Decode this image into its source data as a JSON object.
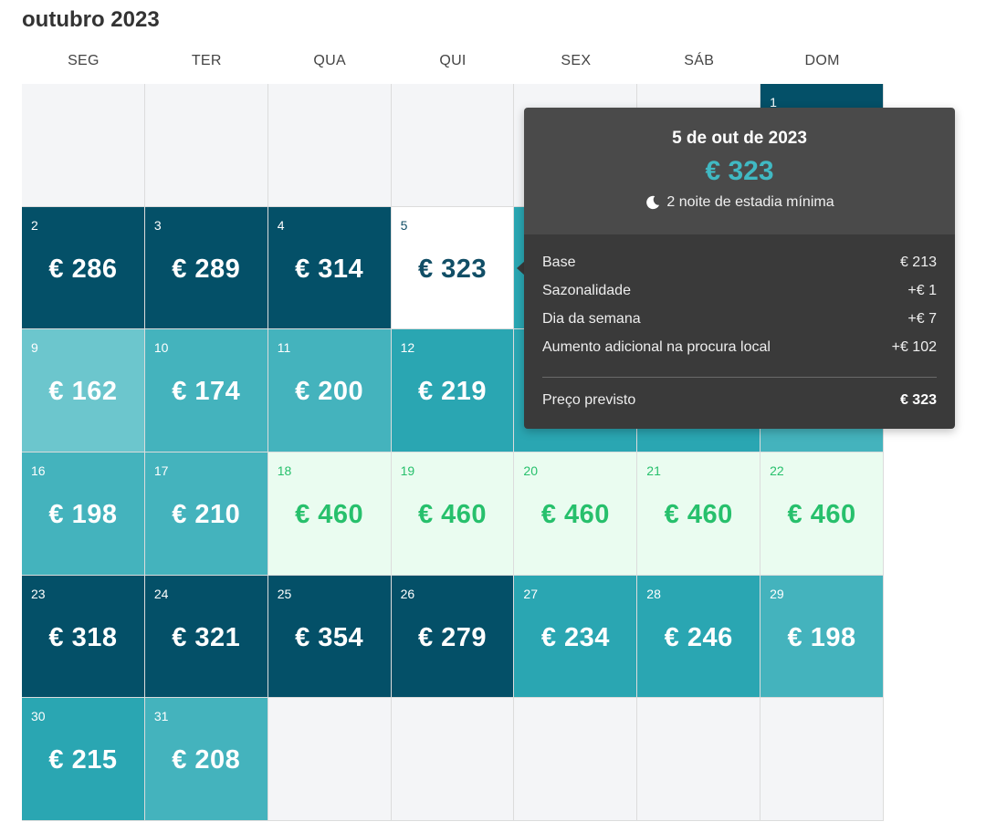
{
  "calendar": {
    "month_title": "outubro 2023",
    "weekdays": [
      "SEG",
      "TER",
      "QUA",
      "QUI",
      "SEX",
      "SÁB",
      "DOM"
    ],
    "days": [
      {
        "day": "1",
        "price": "",
        "col": 6,
        "row": 0,
        "color": "dark"
      },
      {
        "day": "2",
        "price": "€ 286",
        "col": 0,
        "row": 1,
        "color": "dark"
      },
      {
        "day": "3",
        "price": "€ 289",
        "col": 1,
        "row": 1,
        "color": "dark"
      },
      {
        "day": "4",
        "price": "€ 314",
        "col": 2,
        "row": 1,
        "color": "dark"
      },
      {
        "day": "5",
        "price": "€ 323",
        "col": 3,
        "row": 1,
        "color": "white"
      },
      {
        "day": "",
        "price": "",
        "col": 4,
        "row": 1,
        "color": "mid"
      },
      {
        "day": "9",
        "price": "€ 162",
        "col": 0,
        "row": 2,
        "color": "light"
      },
      {
        "day": "10",
        "price": "€ 174",
        "col": 1,
        "row": 2,
        "color": "mid2"
      },
      {
        "day": "11",
        "price": "€ 200",
        "col": 2,
        "row": 2,
        "color": "mid2"
      },
      {
        "day": "12",
        "price": "€ 219",
        "col": 3,
        "row": 2,
        "color": "mid"
      },
      {
        "day": "",
        "price": "",
        "col": 4,
        "row": 2,
        "color": "mid"
      },
      {
        "day": "",
        "price": "",
        "col": 5,
        "row": 2,
        "color": "mid"
      },
      {
        "day": "",
        "price": "",
        "col": 6,
        "row": 2,
        "color": "mid2"
      },
      {
        "day": "16",
        "price": "€ 198",
        "col": 0,
        "row": 3,
        "color": "mid2"
      },
      {
        "day": "17",
        "price": "€ 210",
        "col": 1,
        "row": 3,
        "color": "mid2"
      },
      {
        "day": "18",
        "price": "€ 460",
        "col": 2,
        "row": 3,
        "color": "mint"
      },
      {
        "day": "19",
        "price": "€ 460",
        "col": 3,
        "row": 3,
        "color": "mint"
      },
      {
        "day": "20",
        "price": "€ 460",
        "col": 4,
        "row": 3,
        "color": "mint"
      },
      {
        "day": "21",
        "price": "€ 460",
        "col": 5,
        "row": 3,
        "color": "mint"
      },
      {
        "day": "22",
        "price": "€ 460",
        "col": 6,
        "row": 3,
        "color": "mint"
      },
      {
        "day": "23",
        "price": "€ 318",
        "col": 0,
        "row": 4,
        "color": "dark"
      },
      {
        "day": "24",
        "price": "€ 321",
        "col": 1,
        "row": 4,
        "color": "dark"
      },
      {
        "day": "25",
        "price": "€ 354",
        "col": 2,
        "row": 4,
        "color": "dark"
      },
      {
        "day": "26",
        "price": "€ 279",
        "col": 3,
        "row": 4,
        "color": "dark"
      },
      {
        "day": "27",
        "price": "€ 234",
        "col": 4,
        "row": 4,
        "color": "mid"
      },
      {
        "day": "28",
        "price": "€ 246",
        "col": 5,
        "row": 4,
        "color": "mid"
      },
      {
        "day": "29",
        "price": "€ 198",
        "col": 6,
        "row": 4,
        "color": "mid2"
      },
      {
        "day": "30",
        "price": "€ 215",
        "col": 0,
        "row": 5,
        "color": "mid"
      },
      {
        "day": "31",
        "price": "€ 208",
        "col": 1,
        "row": 5,
        "color": "mid2"
      }
    ],
    "colors": {
      "dark": "#045068",
      "mid": "#2aa6b2",
      "mid2": "#44b3bd",
      "light": "#6cc6cd",
      "mint_bg": "#eafcf0",
      "mint_text": "#27c06c",
      "selected_text": "#114e66"
    }
  },
  "tooltip": {
    "date": "5 de out de 2023",
    "price": "€ 323",
    "min_stay_icon": "moon-icon",
    "min_stay": "2 noite de estadia mínima",
    "breakdown": [
      {
        "label": "Base",
        "value": "€ 213"
      },
      {
        "label": "Sazonalidade",
        "value": "+€ 1"
      },
      {
        "label": "Dia da semana",
        "value": "+€ 7"
      },
      {
        "label": "Aumento adicional na procura local",
        "value": "+€ 102"
      }
    ],
    "total_label": "Preço previsto",
    "total_value": "€ 323"
  }
}
